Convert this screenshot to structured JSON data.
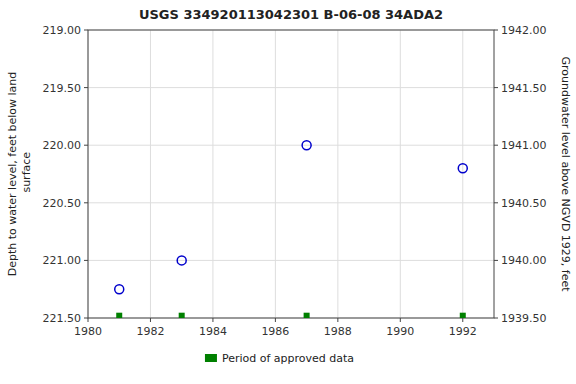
{
  "chart_data": {
    "type": "scatter",
    "title": "USGS 334920113042301 B-06-08 34ADA2",
    "ylabel": "Depth to water level, feet below land\n surface",
    "y2label": "Groundwater level above NGVD 1929, feet",
    "xlim": [
      1980,
      1993
    ],
    "xticks": [
      1980,
      1982,
      1984,
      1986,
      1988,
      1990,
      1992
    ],
    "ylim": [
      221.5,
      219.0
    ],
    "yticks": [
      {
        "value": 219.0,
        "label": "219.00"
      },
      {
        "value": 219.5,
        "label": "219.50"
      },
      {
        "value": 220.0,
        "label": "220.00"
      },
      {
        "value": 220.5,
        "label": "220.50"
      },
      {
        "value": 221.0,
        "label": "221.00"
      },
      {
        "value": 221.5,
        "label": "221.50"
      }
    ],
    "y2lim": [
      1939.5,
      1942.0
    ],
    "y2ticks": [
      {
        "value": 1942.0,
        "label": "1942.00"
      },
      {
        "value": 1941.5,
        "label": "1941.50"
      },
      {
        "value": 1941.0,
        "label": "1941.00"
      },
      {
        "value": 1940.5,
        "label": "1940.50"
      },
      {
        "value": 1940.0,
        "label": "1940.00"
      },
      {
        "value": 1939.5,
        "label": "1939.50"
      }
    ],
    "grid": true,
    "legend": "bottom",
    "series": [
      {
        "color": "#0000cc",
        "marker": "circle",
        "x": [
          1981.0,
          1983.0,
          1987.0,
          1992.0
        ],
        "values": [
          221.25,
          221.0,
          220.0,
          220.2
        ]
      },
      {
        "name": "Period of approved data",
        "color": "#008000",
        "marker": "square",
        "x": [
          1981,
          1983,
          1987,
          1992
        ],
        "values": [
          221.48,
          221.48,
          221.48,
          221.48
        ]
      }
    ]
  }
}
